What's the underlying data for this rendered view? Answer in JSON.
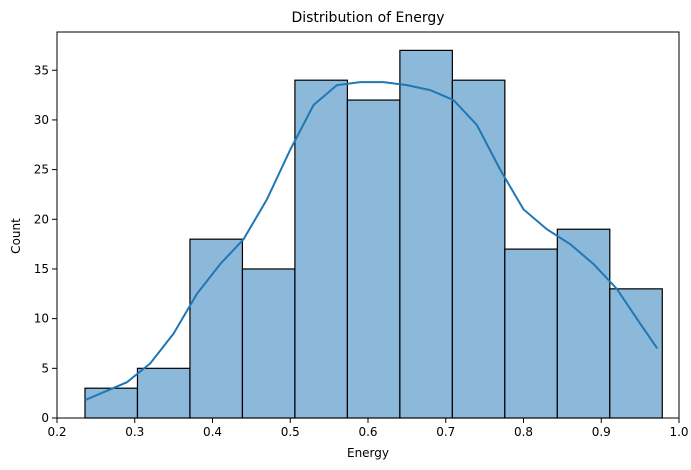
{
  "chart_data": {
    "type": "bar",
    "title": "Distribution of Energy",
    "xlabel": "Energy",
    "ylabel": "Count",
    "xlim": [
      0.2,
      1.0
    ],
    "ylim": [
      0,
      38.85
    ],
    "grid": false,
    "legend": "none",
    "bins": [
      {
        "start": 0.236,
        "end": 0.3035,
        "count": 3
      },
      {
        "start": 0.3035,
        "end": 0.371,
        "count": 5
      },
      {
        "start": 0.371,
        "end": 0.4385,
        "count": 18
      },
      {
        "start": 0.4385,
        "end": 0.506,
        "count": 15
      },
      {
        "start": 0.506,
        "end": 0.5735,
        "count": 34
      },
      {
        "start": 0.5735,
        "end": 0.641,
        "count": 32
      },
      {
        "start": 0.641,
        "end": 0.7085,
        "count": 37
      },
      {
        "start": 0.7085,
        "end": 0.776,
        "count": 34
      },
      {
        "start": 0.776,
        "end": 0.8435,
        "count": 17
      },
      {
        "start": 0.8435,
        "end": 0.911,
        "count": 19
      },
      {
        "start": 0.911,
        "end": 0.9785,
        "count": 13
      }
    ],
    "kde": {
      "x": [
        0.236,
        0.26,
        0.29,
        0.32,
        0.35,
        0.38,
        0.41,
        0.44,
        0.47,
        0.5,
        0.53,
        0.56,
        0.59,
        0.62,
        0.65,
        0.68,
        0.71,
        0.74,
        0.77,
        0.8,
        0.83,
        0.86,
        0.89,
        0.92,
        0.95,
        0.972
      ],
      "y": [
        1.8,
        2.6,
        3.6,
        5.5,
        8.5,
        12.5,
        15.5,
        18.0,
        22.0,
        27.0,
        31.5,
        33.5,
        33.8,
        33.8,
        33.5,
        33.0,
        32.0,
        29.5,
        25.0,
        21.0,
        19.0,
        17.5,
        15.5,
        13.0,
        9.5,
        7.0
      ]
    },
    "xticks": [
      0.2,
      0.3,
      0.4,
      0.5,
      0.6,
      0.7,
      0.8,
      0.9,
      1.0
    ],
    "xtick_labels": [
      "0.2",
      "0.3",
      "0.4",
      "0.5",
      "0.6",
      "0.7",
      "0.8",
      "0.9",
      "1.0"
    ],
    "yticks": [
      0,
      5,
      10,
      15,
      20,
      25,
      30,
      35
    ],
    "ytick_labels": [
      "0",
      "5",
      "10",
      "15",
      "20",
      "25",
      "30",
      "35"
    ],
    "colors": {
      "bar_fill": "#8cb8da",
      "bar_edge": "#000000",
      "kde_line": "#1f77b4"
    }
  }
}
